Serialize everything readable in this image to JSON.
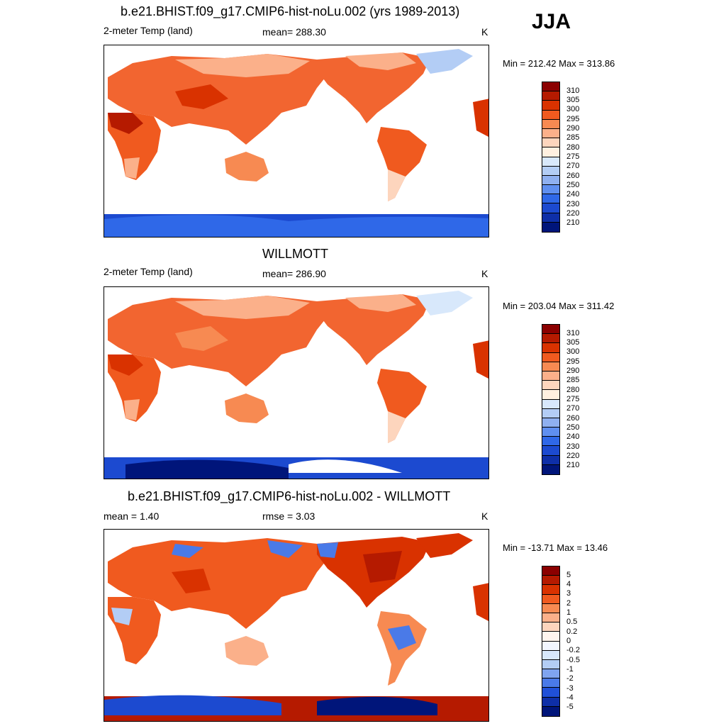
{
  "season": "JJA",
  "panels": [
    {
      "title": "b.e21.BHIST.f09_g17.CMIP6-hist-noLu.002 (yrs 1989-2013)",
      "left_label": "2-meter Temp (land)",
      "center_label": "mean= 288.30",
      "units": "K",
      "minmax": "Min = 212.42 Max = 313.86",
      "colorbar_labels": [
        "310",
        "305",
        "300",
        "295",
        "290",
        "285",
        "280",
        "275",
        "270",
        "260",
        "250",
        "240",
        "230",
        "220",
        "210"
      ],
      "colorbar_colors": [
        "#8b0000",
        "#b51a00",
        "#d93200",
        "#f05a1f",
        "#f78a52",
        "#fbb08a",
        "#fdd5bd",
        "#fff0e0",
        "#d8e8fb",
        "#b3cdf5",
        "#8fb0f0",
        "#5f8ff0",
        "#2f68e8",
        "#1c4ad0",
        "#0e2fa8",
        "#00157a"
      ]
    },
    {
      "title": "WILLMOTT",
      "left_label": "2-meter Temp (land)",
      "center_label": "mean= 286.90",
      "units": "K",
      "minmax": "Min = 203.04 Max = 311.42",
      "colorbar_labels": [
        "310",
        "305",
        "300",
        "295",
        "290",
        "285",
        "280",
        "275",
        "270",
        "260",
        "250",
        "240",
        "230",
        "220",
        "210"
      ],
      "colorbar_colors": [
        "#8b0000",
        "#b51a00",
        "#d93200",
        "#f05a1f",
        "#f78a52",
        "#fbb08a",
        "#fdd5bd",
        "#fff0e0",
        "#d8e8fb",
        "#b3cdf5",
        "#8fb0f0",
        "#5f8ff0",
        "#2f68e8",
        "#1c4ad0",
        "#0e2fa8",
        "#00157a"
      ]
    },
    {
      "title": "b.e21.BHIST.f09_g17.CMIP6-hist-noLu.002 - WILLMOTT",
      "left_label": "mean =   1.40",
      "center_label": "rmse =   3.03",
      "units": "K",
      "minmax": "Min = -13.71 Max =  13.46",
      "colorbar_labels": [
        "5",
        "4",
        "3",
        "2",
        "1",
        "0.5",
        "0.2",
        "0",
        "-0.2",
        "-0.5",
        "-1",
        "-2",
        "-3",
        "-4",
        "-5"
      ],
      "colorbar_colors": [
        "#8b0000",
        "#b51a00",
        "#d93200",
        "#f05a1f",
        "#f78a52",
        "#fbb08a",
        "#fdd5bd",
        "#fff5ee",
        "#f2f6ff",
        "#d8e8fb",
        "#b3cdf5",
        "#7fa4f0",
        "#4a7ae8",
        "#2050d8",
        "#0e2fa8",
        "#00157a"
      ]
    }
  ]
}
